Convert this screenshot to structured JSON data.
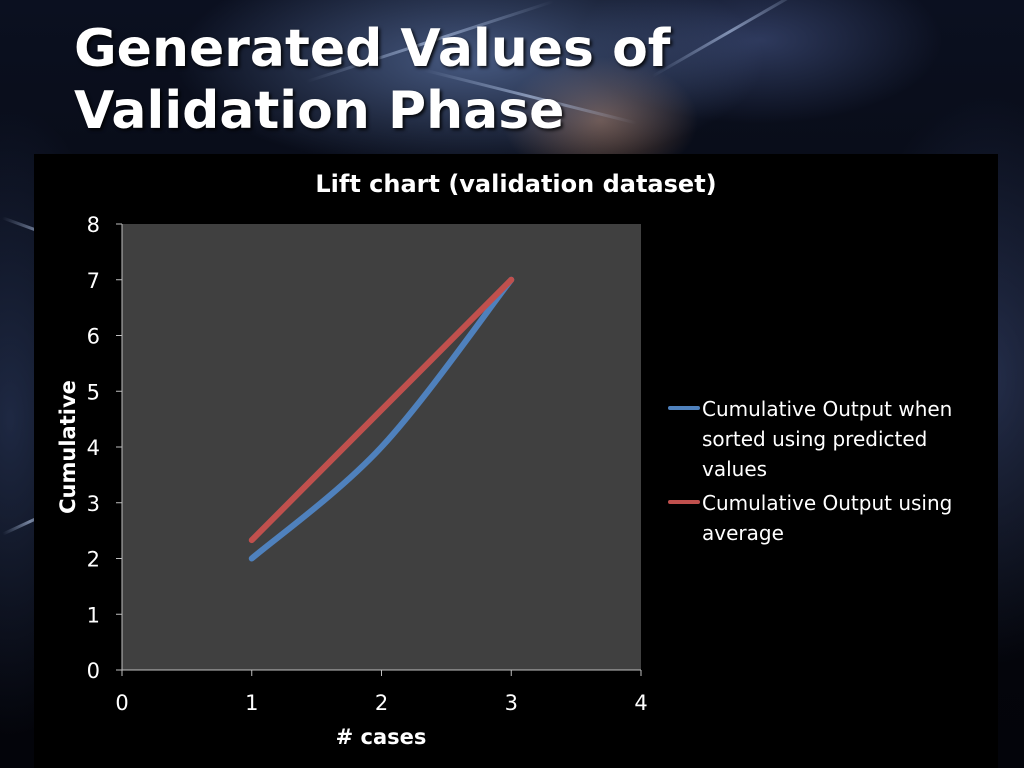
{
  "slide": {
    "title": "Generated Values of Validation Phase"
  },
  "chart_data": {
    "type": "line",
    "title": "Lift chart (validation dataset)",
    "xlabel": "# cases",
    "ylabel": "Cumulative",
    "xlim": [
      0,
      4
    ],
    "ylim": [
      0,
      8
    ],
    "x_ticks": [
      0,
      1,
      2,
      3,
      4
    ],
    "y_ticks": [
      0,
      1,
      2,
      3,
      4,
      5,
      6,
      7,
      8
    ],
    "grid": false,
    "legend_position": "right",
    "plot_background": "#404040",
    "series": [
      {
        "name": "Cumulative Output when sorted using predicted values",
        "color": "#4f81bd",
        "x": [
          1,
          2,
          3
        ],
        "y": [
          2,
          4,
          7
        ]
      },
      {
        "name": "Cumulative Output using average",
        "color": "#c0504d",
        "x": [
          1,
          3
        ],
        "y": [
          2.33,
          7
        ]
      }
    ]
  }
}
